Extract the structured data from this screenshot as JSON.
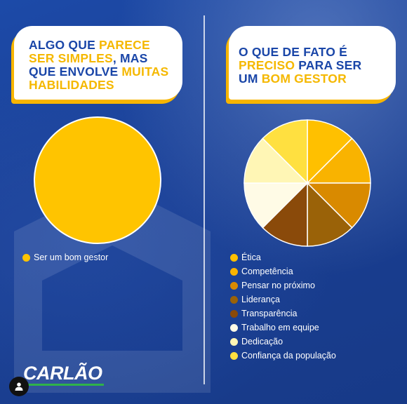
{
  "left_panel": {
    "title_lines": [
      [
        {
          "text": "ALGO QUE ",
          "hl": false
        },
        {
          "text": "PARECE",
          "hl": true
        }
      ],
      [
        {
          "text": "SER SIMPLES",
          "hl": true
        },
        {
          "text": ", MAS",
          "hl": false
        }
      ],
      [
        {
          "text": "QUE ENVOLVE ",
          "hl": false
        },
        {
          "text": "MUITAS",
          "hl": true
        }
      ],
      [
        {
          "text": "HABILIDADES",
          "hl": true
        }
      ]
    ]
  },
  "right_panel": {
    "title_lines": [
      [
        {
          "text": "O QUE DE FATO É",
          "hl": false
        }
      ],
      [
        {
          "text": "PRECISO",
          "hl": true
        },
        {
          "text": " PARA SER",
          "hl": false
        }
      ],
      [
        {
          "text": "UM ",
          "hl": false
        },
        {
          "text": "BOM GESTOR",
          "hl": true
        }
      ]
    ]
  },
  "brand": {
    "name": "CARLÃO"
  },
  "icons": {
    "user_button": "user-icon"
  },
  "colors": {
    "accent_yellow": "#f5b800",
    "title_blue": "#1a46a8",
    "brand_green": "#2fb24a"
  },
  "chart_data": [
    {
      "type": "pie",
      "categories": [
        "Ser um bom gestor"
      ],
      "values": [
        100
      ],
      "colors": [
        "#ffc400"
      ],
      "legend_position": "bottom-left"
    },
    {
      "type": "pie",
      "categories": [
        "Ética",
        "Competência",
        "Pensar no próximo",
        "Liderança",
        "Transparência",
        "Trabalho em equipe",
        "Dedicação",
        "Confiança da população"
      ],
      "values": [
        12.5,
        12.5,
        12.5,
        12.5,
        12.5,
        12.5,
        12.5,
        12.5
      ],
      "colors": [
        "#ffc000",
        "#f9b300",
        "#d98a00",
        "#9a6208",
        "#8a4a0a",
        "#fffbe6",
        "#fff6b5",
        "#ffe040"
      ],
      "start_angle_deg": 0,
      "legend_position": "bottom-left"
    }
  ]
}
